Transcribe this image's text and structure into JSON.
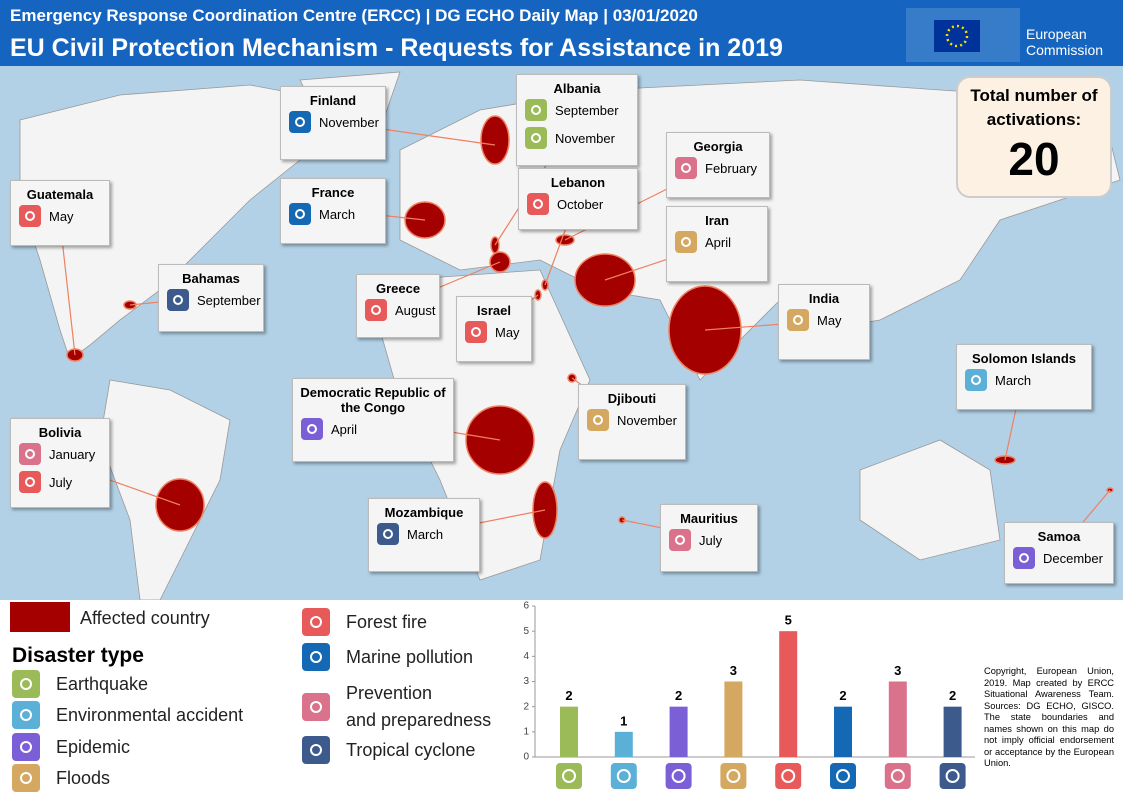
{
  "header": {
    "subtitle": "Emergency Response Coordination Centre (ERCC) | DG ECHO Daily Map | 03/01/2020",
    "title": "EU Civil Protection Mechanism - Requests for Assistance in 2019",
    "logo": "European\nCommission"
  },
  "total": {
    "label": "Total number of activations:",
    "value": 20
  },
  "countries": [
    {
      "name": "Finland",
      "events": [
        {
          "month": "November",
          "color": "#1468b4"
        }
      ]
    },
    {
      "name": "Guatemala",
      "events": [
        {
          "month": "May",
          "color": "#e8595a"
        }
      ]
    },
    {
      "name": "France",
      "events": [
        {
          "month": "March",
          "color": "#1468b4"
        }
      ]
    },
    {
      "name": "Albania",
      "events": [
        {
          "month": "September",
          "color": "#9bbb59"
        },
        {
          "month": "November",
          "color": "#9bbb59"
        }
      ]
    },
    {
      "name": "Georgia",
      "events": [
        {
          "month": "February",
          "color": "#d9728a"
        }
      ]
    },
    {
      "name": "Lebanon",
      "events": [
        {
          "month": "October",
          "color": "#e8595a"
        }
      ]
    },
    {
      "name": "Iran",
      "events": [
        {
          "month": "April",
          "color": "#d4a860"
        }
      ]
    },
    {
      "name": "Bahamas",
      "events": [
        {
          "month": "September",
          "color": "#3c5a8c"
        }
      ]
    },
    {
      "name": "Greece",
      "events": [
        {
          "month": "August",
          "color": "#e8595a"
        }
      ]
    },
    {
      "name": "Israel",
      "events": [
        {
          "month": "May",
          "color": "#e8595a"
        }
      ]
    },
    {
      "name": "India",
      "events": [
        {
          "month": "May",
          "color": "#d4a860"
        }
      ]
    },
    {
      "name": "Solomon Islands",
      "events": [
        {
          "month": "March",
          "color": "#5bb0d8"
        }
      ]
    },
    {
      "name": "Democratic Republic of the Congo",
      "events": [
        {
          "month": "April",
          "color": "#7b5fd6"
        }
      ]
    },
    {
      "name": "Djibouti",
      "events": [
        {
          "month": "November",
          "color": "#d4a860"
        }
      ]
    },
    {
      "name": "Bolivia",
      "events": [
        {
          "month": "January",
          "color": "#d9728a"
        },
        {
          "month": "July",
          "color": "#e8595a"
        }
      ]
    },
    {
      "name": "Mozambique",
      "events": [
        {
          "month": "March",
          "color": "#3c5a8c"
        }
      ]
    },
    {
      "name": "Mauritius",
      "events": [
        {
          "month": "July",
          "color": "#d9728a"
        }
      ]
    },
    {
      "name": "Samoa",
      "events": [
        {
          "month": "December",
          "color": "#7b5fd6"
        }
      ]
    }
  ],
  "legend": {
    "affected": "Affected country",
    "affected_color": "#a50000",
    "disaster_title": "Disaster type",
    "types": [
      {
        "label": "Earthquake",
        "color": "#9bbb59"
      },
      {
        "label": "Environmental accident",
        "color": "#5bb0d8"
      },
      {
        "label": "Epidemic",
        "color": "#7b5fd6"
      },
      {
        "label": "Floods",
        "color": "#d4a860"
      },
      {
        "label": "Forest fire",
        "color": "#e8595a"
      },
      {
        "label": "Marine pollution",
        "color": "#1468b4"
      },
      {
        "label": "Prevention\nand preparedness",
        "color": "#d9728a"
      },
      {
        "label": "Tropical cyclone",
        "color": "#3c5a8c"
      }
    ]
  },
  "chart_data": {
    "type": "bar",
    "categories": [
      null,
      null,
      null,
      null,
      null,
      null,
      null,
      null
    ],
    "values": [
      2,
      1,
      2,
      3,
      5,
      2,
      3,
      2
    ],
    "colors": [
      "#9bbb59",
      "#5bb0d8",
      "#7b5fd6",
      "#d4a860",
      "#e8595a",
      "#1468b4",
      "#d9728a",
      "#3c5a8c"
    ],
    "ylim": [
      0,
      6
    ],
    "yticks": [
      0,
      1,
      2,
      3,
      4,
      5,
      6
    ]
  },
  "copyright": "Copyright, European Union, 2019. Map created by ERCC Situational Awareness Team. Sources: DG ECHO, GISCO. The state boundaries and names shown on this map do not imply official endorsement or acceptance by the European Union."
}
